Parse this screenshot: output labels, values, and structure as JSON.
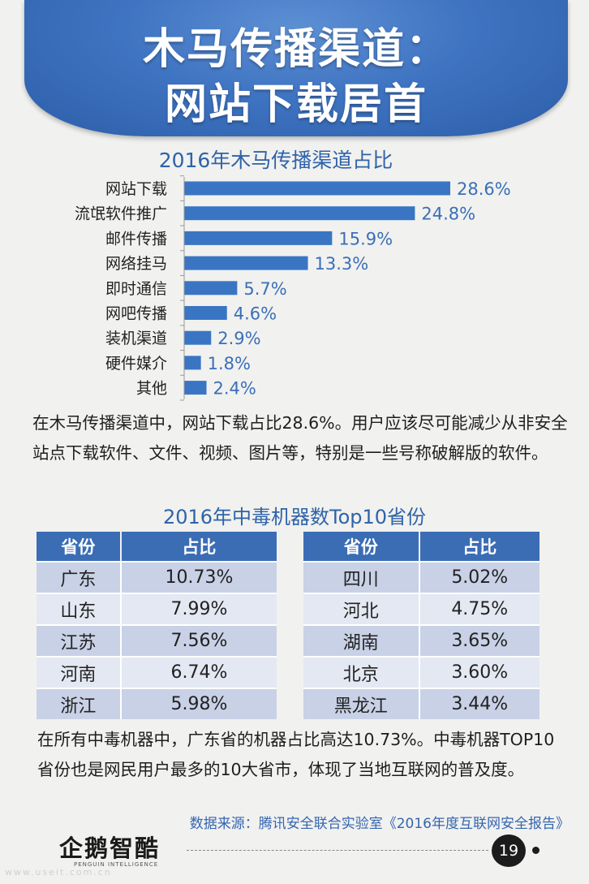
{
  "header": {
    "title_line1": "木马传播渠道：",
    "title_line2": "网站下载居首"
  },
  "chart_data": {
    "type": "bar",
    "orientation": "horizontal",
    "title": "2016年木马传播渠道占比",
    "categories": [
      "网站下载",
      "流氓软件推广",
      "邮件传播",
      "网络挂马",
      "即时通信",
      "网吧传播",
      "装机渠道",
      "硬件媒介",
      "其他"
    ],
    "values": [
      28.6,
      24.8,
      15.9,
      13.3,
      5.7,
      4.6,
      2.9,
      1.8,
      2.4
    ],
    "value_labels": [
      "28.6%",
      "24.8%",
      "15.9%",
      "13.3%",
      "5.7%",
      "4.6%",
      "2.9%",
      "1.8%",
      "2.4%"
    ],
    "bar_color": "#3a75c4",
    "label_color": "#3a6fb8",
    "xlim": [
      0,
      28.6
    ],
    "grid": false
  },
  "paragraph1": "在木马传播渠道中，网站下载占比28.6%。用户应该尽可能减少从非安全站点下载软件、文件、视频、图片等，特别是一些号称破解版的软件。",
  "table": {
    "title": "2016年中毒机器数Top10省份",
    "headers": [
      "省份",
      "占比"
    ],
    "left_rows": [
      [
        "广东",
        "10.73%"
      ],
      [
        "山东",
        "7.99%"
      ],
      [
        "江苏",
        "7.56%"
      ],
      [
        "河南",
        "6.74%"
      ],
      [
        "浙江",
        "5.98%"
      ]
    ],
    "right_rows": [
      [
        "四川",
        "5.02%"
      ],
      [
        "河北",
        "4.75%"
      ],
      [
        "湖南",
        "3.65%"
      ],
      [
        "北京",
        "3.60%"
      ],
      [
        "黑龙江",
        "3.44%"
      ]
    ]
  },
  "paragraph2": "在所有中毒机器中，广东省的机器占比高达10.73%。中毒机器TOP10省份也是网民用户最多的10大省市，体现了当地互联网的普及度。",
  "source": "数据来源：腾讯安全联合实验室《2016年度互联网安全报告》",
  "footer": {
    "logo_text": "企鹅智酷",
    "logo_sub": "PENGUIN INTELLIGENCE",
    "page_number": "19",
    "watermark": "www.useit.com.cn"
  },
  "colors": {
    "banner": "#3f74c2",
    "table_header": "#3b6db5",
    "row_odd": "#c8d1e6",
    "row_even": "#e4e8f2",
    "accent_text": "#2e63a9"
  }
}
